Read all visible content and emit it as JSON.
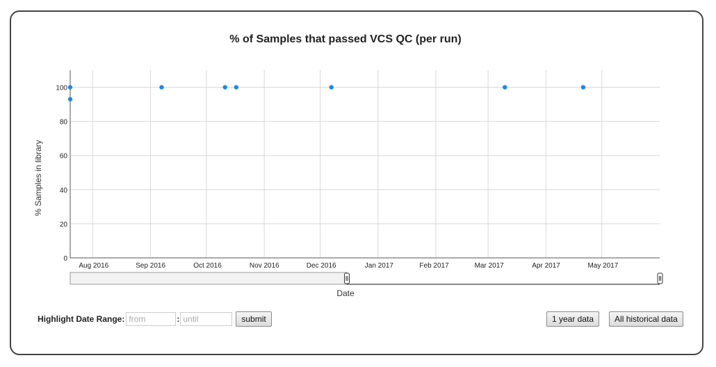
{
  "chart_data": {
    "type": "scatter",
    "title": "% of Samples that passed VCS QC (per run)",
    "xlabel": "Date",
    "ylabel": "% Samples in library",
    "x_ticks": [
      "Aug 2016",
      "Sep 2016",
      "Oct 2016",
      "Nov 2016",
      "Dec 2016",
      "Jan 2017",
      "Feb 2017",
      "Mar 2017",
      "Apr 2017",
      "May 2017"
    ],
    "xlim": [
      "2016-07-20",
      "2017-06-01"
    ],
    "y_ticks": [
      0,
      20,
      40,
      60,
      80,
      100
    ],
    "ylim": [
      0,
      110
    ],
    "grid": true,
    "points_color": "#1e88e5",
    "points": [
      {
        "x": "2016-07-20",
        "y": 100
      },
      {
        "x": "2016-07-20",
        "y": 93
      },
      {
        "x": "2016-09-07",
        "y": 100
      },
      {
        "x": "2016-10-11",
        "y": 100
      },
      {
        "x": "2016-10-17",
        "y": 100
      },
      {
        "x": "2016-12-07",
        "y": 100
      },
      {
        "x": "2017-03-10",
        "y": 100
      },
      {
        "x": "2017-04-21",
        "y": 100
      }
    ]
  },
  "controls": {
    "highlight_label": "Highlight Date Range:",
    "from_placeholder": "from",
    "until_placeholder": "until",
    "colon": ":",
    "submit_label": "submit",
    "one_year_label": "1 year data",
    "all_history_label": "All historical data"
  }
}
